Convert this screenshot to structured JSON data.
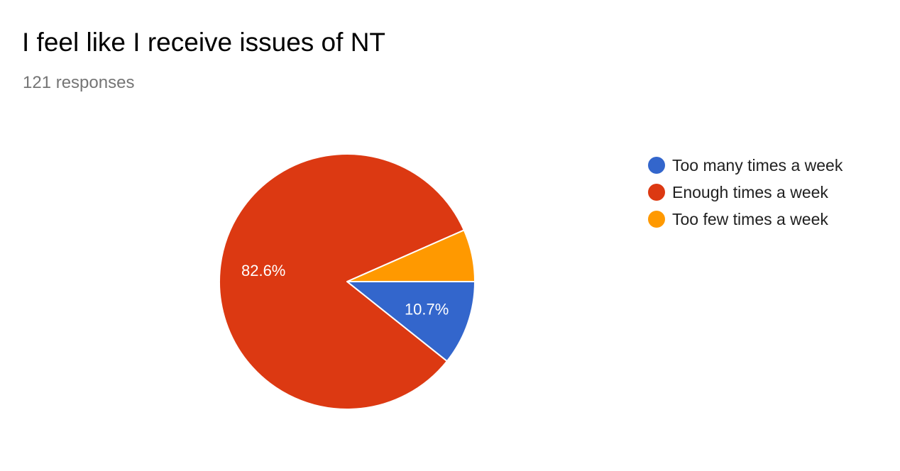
{
  "header": {
    "title": "I feel like I receive issues of NT",
    "responses": "121 responses"
  },
  "chart_data": {
    "type": "pie",
    "title": "I feel like I receive issues of NT",
    "subtitle": "121 responses",
    "legend_position": "right",
    "slices": [
      {
        "label": "Too many times a week",
        "value": 10.7,
        "display": "10.7%",
        "color": "#3366cc"
      },
      {
        "label": "Enough times a week",
        "value": 82.6,
        "display": "82.6%",
        "color": "#dc3912"
      },
      {
        "label": "Too few times a week",
        "value": 6.6,
        "display": "",
        "color": "#ff9900"
      }
    ]
  }
}
